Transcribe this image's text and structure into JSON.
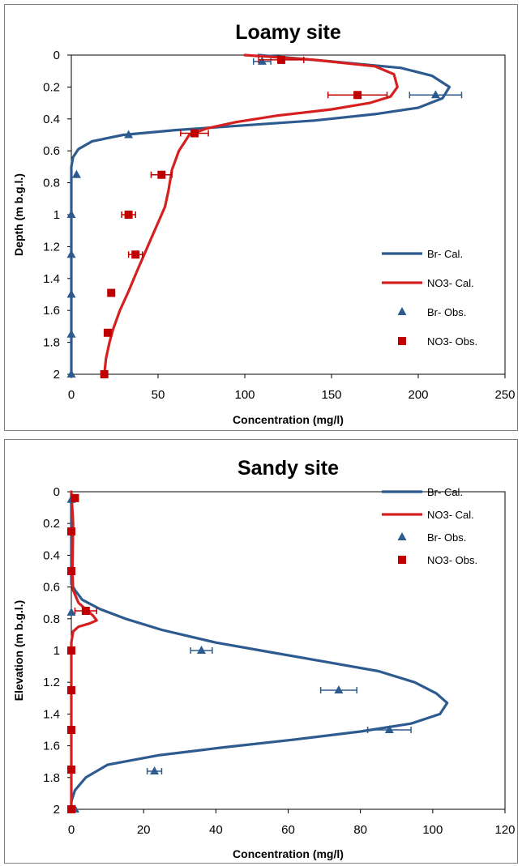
{
  "chart_data": [
    {
      "type": "line",
      "title": "Loamy site",
      "xlabel": "Concentration (mg/l)",
      "ylabel": "Depth (m b.g.l.)",
      "xlim": [
        0,
        250
      ],
      "ylim": [
        0,
        2
      ],
      "y_inverted": true,
      "xticks": [
        "0",
        "50",
        "100",
        "150",
        "200",
        "250"
      ],
      "yticks": [
        "0",
        "0.2",
        "0.4",
        "0.6",
        "0.8",
        "1",
        "1.2",
        "1.4",
        "1.6",
        "1.8",
        "2"
      ],
      "grid": false,
      "legend_position": "lower-right",
      "series": [
        {
          "name": "Br- Cal.",
          "kind": "line",
          "color": "#2e5b8f",
          "points": [
            [
              108,
              0.0
            ],
            [
              150,
              0.04
            ],
            [
              190,
              0.08
            ],
            [
              208,
              0.13
            ],
            [
              218,
              0.2
            ],
            [
              214,
              0.27
            ],
            [
              200,
              0.33
            ],
            [
              175,
              0.37
            ],
            [
              140,
              0.41
            ],
            [
              100,
              0.44
            ],
            [
              60,
              0.47
            ],
            [
              30,
              0.5
            ],
            [
              12,
              0.54
            ],
            [
              4,
              0.59
            ],
            [
              1,
              0.64
            ],
            [
              0,
              0.7
            ],
            [
              0,
              2.0
            ]
          ]
        },
        {
          "name": "NO3- Cal.",
          "kind": "line",
          "color": "#d62020",
          "points": [
            [
              100,
              0.0
            ],
            [
              140,
              0.03
            ],
            [
              175,
              0.07
            ],
            [
              186,
              0.12
            ],
            [
              188,
              0.2
            ],
            [
              184,
              0.26
            ],
            [
              172,
              0.3
            ],
            [
              150,
              0.34
            ],
            [
              118,
              0.38
            ],
            [
              95,
              0.42
            ],
            [
              78,
              0.46
            ],
            [
              68,
              0.5
            ],
            [
              62,
              0.6
            ],
            [
              58,
              0.72
            ],
            [
              56,
              0.85
            ],
            [
              54,
              0.95
            ],
            [
              50,
              1.05
            ],
            [
              46,
              1.15
            ],
            [
              42,
              1.25
            ],
            [
              38,
              1.35
            ],
            [
              33,
              1.48
            ],
            [
              28,
              1.6
            ],
            [
              24,
              1.72
            ],
            [
              22,
              1.8
            ],
            [
              20,
              1.9
            ],
            [
              19,
              2.0
            ]
          ]
        },
        {
          "name": "Br- Obs.",
          "kind": "marker",
          "marker": "triangle",
          "color": "#2e5b8f",
          "points": [
            [
              110,
              0.04,
              5
            ],
            [
              210,
              0.25,
              15
            ],
            [
              33,
              0.5,
              0
            ],
            [
              3,
              0.75,
              0
            ],
            [
              0,
              1.0,
              0
            ],
            [
              0,
              1.25,
              0
            ],
            [
              0,
              1.5,
              0
            ],
            [
              0,
              1.75,
              0
            ],
            [
              0,
              2.0,
              0
            ]
          ]
        },
        {
          "name": "NO3- Obs.",
          "kind": "marker",
          "marker": "square",
          "color": "#c00000",
          "points": [
            [
              121,
              0.03,
              13
            ],
            [
              165,
              0.25,
              17
            ],
            [
              71,
              0.49,
              8
            ],
            [
              52,
              0.75,
              6
            ],
            [
              33,
              1.0,
              4
            ],
            [
              37,
              1.25,
              4
            ],
            [
              23,
              1.49,
              0
            ],
            [
              21,
              1.74,
              0
            ],
            [
              19,
              2.0,
              0
            ]
          ]
        }
      ]
    },
    {
      "type": "line",
      "title": "Sandy site",
      "xlabel": "Concentration (mg/l)",
      "ylabel": "Elevation (m b.g.l.)",
      "xlim": [
        0,
        120
      ],
      "ylim": [
        0,
        2
      ],
      "y_inverted": true,
      "xticks": [
        "0",
        "20",
        "40",
        "60",
        "80",
        "100",
        "120"
      ],
      "yticks": [
        "0",
        "0.2",
        "0.4",
        "0.6",
        "0.8",
        "1",
        "1.2",
        "1.4",
        "1.6",
        "1.8",
        "2"
      ],
      "grid": false,
      "legend_position": "top-right",
      "series": [
        {
          "name": "Br- Cal.",
          "kind": "line",
          "color": "#2e5b8f",
          "points": [
            [
              0,
              0.0
            ],
            [
              0,
              0.58
            ],
            [
              1,
              0.62
            ],
            [
              3,
              0.68
            ],
            [
              8,
              0.74
            ],
            [
              15,
              0.8
            ],
            [
              25,
              0.87
            ],
            [
              40,
              0.95
            ],
            [
              55,
              1.01
            ],
            [
              70,
              1.07
            ],
            [
              85,
              1.13
            ],
            [
              95,
              1.2
            ],
            [
              101,
              1.27
            ],
            [
              104,
              1.33
            ],
            [
              102,
              1.4
            ],
            [
              94,
              1.46
            ],
            [
              80,
              1.51
            ],
            [
              62,
              1.56
            ],
            [
              42,
              1.61
            ],
            [
              24,
              1.66
            ],
            [
              10,
              1.72
            ],
            [
              4,
              1.8
            ],
            [
              1,
              1.88
            ],
            [
              0,
              1.95
            ],
            [
              0,
              2.0
            ]
          ]
        },
        {
          "name": "NO3- Cal.",
          "kind": "line",
          "color": "#d62020",
          "points": [
            [
              0,
              0.0
            ],
            [
              0.5,
              0.2
            ],
            [
              0.3,
              0.5
            ],
            [
              0.5,
              0.62
            ],
            [
              2,
              0.7
            ],
            [
              4,
              0.74
            ],
            [
              6,
              0.78
            ],
            [
              7,
              0.81
            ],
            [
              5,
              0.83
            ],
            [
              2,
              0.85
            ],
            [
              0.5,
              0.88
            ],
            [
              0,
              0.95
            ],
            [
              0,
              2.0
            ]
          ]
        },
        {
          "name": "Br- Obs.",
          "kind": "marker",
          "marker": "triangle",
          "color": "#2e5b8f",
          "points": [
            [
              0,
              0.05,
              0
            ],
            [
              0,
              0.76,
              0
            ],
            [
              36,
              1.0,
              3
            ],
            [
              74,
              1.25,
              5
            ],
            [
              88,
              1.5,
              6
            ],
            [
              23,
              1.76,
              2
            ],
            [
              1,
              2.0,
              0
            ]
          ]
        },
        {
          "name": "NO3- Obs.",
          "kind": "marker",
          "marker": "square",
          "color": "#c00000",
          "points": [
            [
              1,
              0.04,
              0
            ],
            [
              0,
              0.25,
              0
            ],
            [
              0,
              0.5,
              0
            ],
            [
              4,
              0.75,
              3
            ],
            [
              0,
              1.0,
              0
            ],
            [
              0,
              1.25,
              0
            ],
            [
              0,
              1.5,
              0
            ],
            [
              0,
              1.75,
              0
            ],
            [
              0,
              2.0,
              0
            ]
          ]
        }
      ]
    }
  ]
}
